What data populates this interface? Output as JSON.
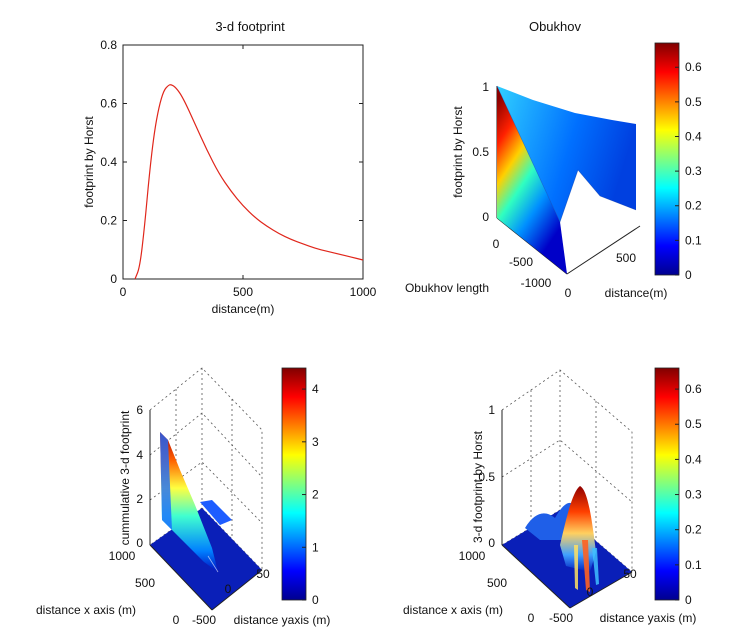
{
  "chart_data": [
    {
      "type": "line",
      "title": "3-d footprint",
      "xlabel": "distance(m)",
      "ylabel": "footprint by Horst",
      "xlim": [
        0,
        1000
      ],
      "ylim": [
        0,
        0.8
      ],
      "xticks": [
        0,
        500,
        1000
      ],
      "yticks": [
        0,
        0.2,
        0.4,
        0.6,
        0.8
      ],
      "series": [
        {
          "color": "#e0261b",
          "x": [
            50,
            70,
            90,
            110,
            130,
            150,
            170,
            190,
            200,
            220,
            250,
            300,
            350,
            400,
            450,
            500,
            550,
            600,
            650,
            700,
            750,
            800,
            850,
            900,
            950,
            1000
          ],
          "values": [
            0,
            0.04,
            0.18,
            0.36,
            0.5,
            0.59,
            0.645,
            0.663,
            0.665,
            0.655,
            0.62,
            0.53,
            0.44,
            0.36,
            0.3,
            0.25,
            0.21,
            0.18,
            0.155,
            0.135,
            0.12,
            0.105,
            0.095,
            0.085,
            0.075,
            0.065
          ]
        }
      ]
    },
    {
      "type": "surface",
      "title": "Obukhov",
      "zlabel": "footprint by Horst",
      "xlabel": "Obukhov length",
      "ylabel": "distance(m)",
      "zticks": [
        "0",
        "0.5",
        "1"
      ],
      "xticks": [
        "0",
        "-500",
        "-1000"
      ],
      "yticks": [
        "0",
        "500"
      ],
      "colorbar": {
        "min": 0,
        "max": 0.67,
        "ticks": [
          "0",
          "0.1",
          "0.2",
          "0.3",
          "0.4",
          "0.5",
          "0.6"
        ]
      }
    },
    {
      "type": "surface",
      "zlabel": "cummulative 3-d footprint",
      "xlabel": "distance x axis (m)",
      "ylabel": "distance yaxis (m)",
      "zticks": [
        "0",
        "2",
        "4",
        "6"
      ],
      "xticks": [
        "1000",
        "500",
        "0"
      ],
      "yticks": [
        "-500",
        "0",
        "50"
      ],
      "colorbar": {
        "min": 0,
        "max": 4.4,
        "ticks": [
          "0",
          "1",
          "2",
          "3",
          "4"
        ]
      }
    },
    {
      "type": "surface",
      "zlabel": "3-d footprint by Horst",
      "xlabel": "distance x axis (m)",
      "ylabel": "distance yaxis (m)",
      "zticks": [
        "0",
        "0.5",
        "1"
      ],
      "xticks": [
        "1000",
        "500",
        "0"
      ],
      "yticks": [
        "-500",
        "0",
        "50"
      ],
      "colorbar": {
        "min": 0,
        "max": 0.66,
        "ticks": [
          "0",
          "0.1",
          "0.2",
          "0.3",
          "0.4",
          "0.5",
          "0.6"
        ]
      }
    }
  ]
}
